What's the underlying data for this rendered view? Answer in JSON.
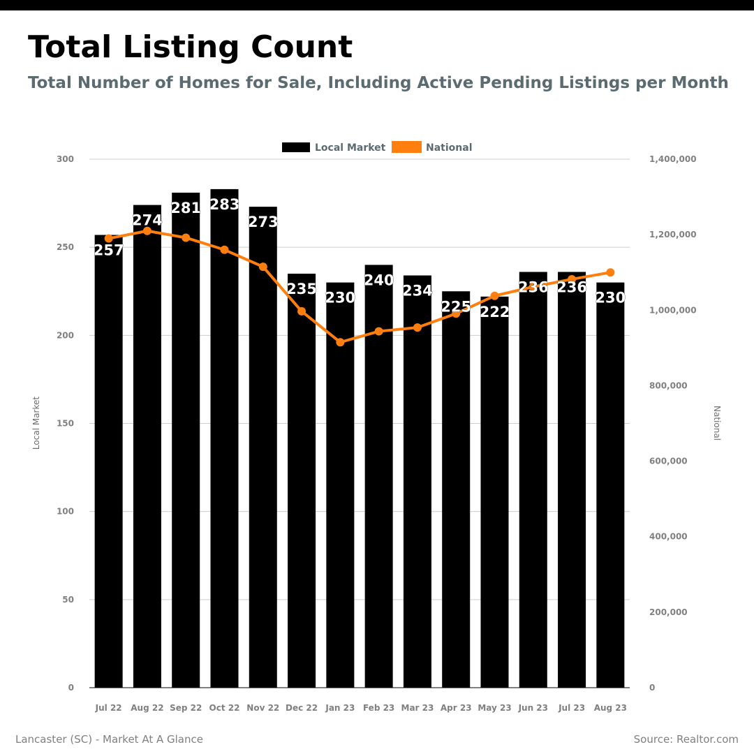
{
  "header": {
    "title": "Total Listing Count",
    "subtitle": "Total Number of Homes for Sale, Including Active Pending Listings per Month"
  },
  "footer": {
    "left": "Lancaster (SC) - Market At A Glance",
    "right": "Source: Realtor.com"
  },
  "colors": {
    "local_bar": "#000000",
    "national_line": "#ff7f0e",
    "subtitle": "#5b6b72",
    "axis_text": "#808080",
    "gridline": "#cccccc"
  },
  "chart_data": {
    "type": "bar",
    "categories": [
      "Jul 22",
      "Aug 22",
      "Sep 22",
      "Oct 22",
      "Nov 22",
      "Dec 22",
      "Jan 23",
      "Feb 23",
      "Mar 23",
      "Apr 23",
      "May 23",
      "Jun 23",
      "Jul 23",
      "Aug 23"
    ],
    "series": [
      {
        "name": "Local Market",
        "type": "bar",
        "axis": "left",
        "values": [
          257,
          274,
          281,
          283,
          273,
          235,
          230,
          240,
          234,
          225,
          222,
          236,
          236,
          230
        ],
        "data_labels": [
          "257",
          "274",
          "281",
          "283",
          "273",
          "235",
          "230",
          "240",
          "234",
          "225",
          "222",
          "236",
          "236",
          "230"
        ]
      },
      {
        "name": "National",
        "type": "line",
        "axis": "right",
        "values": [
          1190000,
          1210000,
          1192000,
          1160000,
          1115000,
          997000,
          915000,
          944000,
          954000,
          991000,
          1038000,
          1062000,
          1082000,
          1100000
        ]
      }
    ],
    "left_axis": {
      "label": "Local Market",
      "ylim": [
        0,
        300
      ],
      "ticks": [
        "0",
        "50",
        "100",
        "150",
        "200",
        "250",
        "300"
      ]
    },
    "right_axis": {
      "label": "National",
      "ylim": [
        0,
        1400000
      ],
      "ticks": [
        "0",
        "200,000",
        "400,000",
        "600,000",
        "800,000",
        "1,000,000",
        "1,200,000",
        "1,400,000"
      ]
    },
    "grid": true,
    "legend": "top-center"
  }
}
